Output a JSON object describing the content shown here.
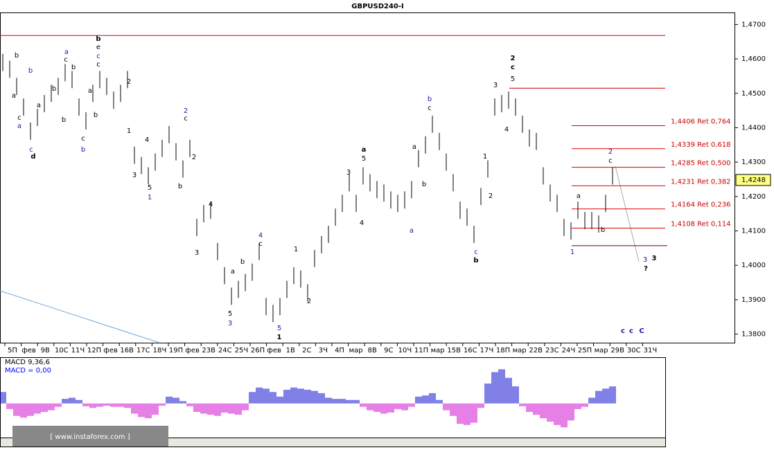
{
  "chart_data": {
    "type": "ohlc",
    "title": "GBPUSD240-I",
    "ylim": [
      1.3775,
      1.4735
    ],
    "yticks": [
      {
        "value": 1.47,
        "label": "1,4700"
      },
      {
        "value": 1.46,
        "label": "1,4600"
      },
      {
        "value": 1.45,
        "label": "1,4500"
      },
      {
        "value": 1.44,
        "label": "1,4400"
      },
      {
        "value": 1.43,
        "label": "1,4300"
      },
      {
        "value": 1.42,
        "label": "1,4200"
      },
      {
        "value": 1.41,
        "label": "1,4100"
      },
      {
        "value": 1.4,
        "label": "1,4000"
      },
      {
        "value": 1.39,
        "label": "1,3900"
      },
      {
        "value": 1.38,
        "label": "1,3800"
      }
    ],
    "current_price": {
      "value": 1.4248,
      "label": "1,4248"
    },
    "categories": [
      "5П",
      "фев",
      "9В",
      "10С",
      "11Ч",
      "12П",
      "фев",
      "16В",
      "17С",
      "18Ч",
      "19П",
      "фев",
      "23В",
      "24С",
      "25Ч",
      "26П",
      "фев",
      "1В",
      "2С",
      "3Ч",
      "4П",
      "мар",
      "8В",
      "9С",
      "10Ч",
      "11П",
      "мар",
      "15В",
      "16С",
      "17Ч",
      "18П",
      "мар",
      "22В",
      "23С",
      "24Ч",
      "25П",
      "мар",
      "29В",
      "30С",
      "31Ч"
    ],
    "high": [
      1.4615,
      1.4595,
      1.4545,
      1.4485,
      1.4415,
      1.4455,
      1.4495,
      1.4525,
      1.4545,
      1.4585,
      1.4565,
      1.4485,
      1.4445,
      1.4525,
      1.4565,
      1.4545,
      1.4505,
      1.4525,
      1.4565,
      1.4345,
      1.4315,
      1.4285,
      1.4325,
      1.4365,
      1.4405,
      1.4355,
      1.4305,
      1.4365,
      1.4135,
      1.4175,
      1.4185,
      1.4065,
      1.3995,
      1.3935,
      1.3955,
      1.3975,
      1.4005,
      1.4065,
      1.3905,
      1.3885,
      1.3905,
      1.3955,
      1.3995,
      1.3985,
      1.3945,
      1.4045,
      1.4085,
      1.4115,
      1.4165,
      1.4205,
      1.4265,
      1.4205,
      1.4285,
      1.4265,
      1.4245,
      1.4235,
      1.4215,
      1.4205,
      1.4215,
      1.4245,
      1.4335,
      1.4375,
      1.4435,
      1.4385,
      1.4325,
      1.4265,
      1.4185,
      1.4165,
      1.4115,
      1.4225,
      1.4305,
      1.4485,
      1.4495,
      1.4505,
      1.4485,
      1.4435,
      1.4395,
      1.4385,
      1.4285,
      1.4235,
      1.4205,
      1.4135,
      1.4125,
      1.4185,
      1.4155,
      1.4155,
      1.4145,
      1.4205,
      1.4285
    ],
    "low": [
      1.4565,
      1.4545,
      1.4495,
      1.4435,
      1.4365,
      1.4405,
      1.4445,
      1.4475,
      1.4495,
      1.4535,
      1.4515,
      1.4435,
      1.4395,
      1.4475,
      1.4515,
      1.4495,
      1.4455,
      1.4475,
      1.4515,
      1.4295,
      1.4265,
      1.4235,
      1.4275,
      1.4315,
      1.4355,
      1.4305,
      1.4255,
      1.4315,
      1.4085,
      1.4125,
      1.4135,
      1.4015,
      1.3945,
      1.3885,
      1.3905,
      1.3925,
      1.3955,
      1.4015,
      1.3855,
      1.3835,
      1.3855,
      1.3905,
      1.3945,
      1.3935,
      1.3895,
      1.3995,
      1.4035,
      1.4065,
      1.4115,
      1.4155,
      1.4215,
      1.4155,
      1.4235,
      1.4215,
      1.4195,
      1.4185,
      1.4165,
      1.4155,
      1.4165,
      1.4195,
      1.4285,
      1.4325,
      1.4385,
      1.4335,
      1.4275,
      1.4215,
      1.4135,
      1.4115,
      1.4065,
      1.4175,
      1.4255,
      1.4435,
      1.4445,
      1.4455,
      1.4435,
      1.4385,
      1.4345,
      1.4335,
      1.4235,
      1.4185,
      1.4155,
      1.4085,
      1.4075,
      1.4135,
      1.4105,
      1.4105,
      1.4095,
      1.4155,
      1.4235
    ],
    "levels": [
      {
        "value": 1.4406,
        "label": "1,4406 Ret 0,764"
      },
      {
        "value": 1.4339,
        "label": "1,4339 Ret 0,618"
      },
      {
        "value": 1.4285,
        "label": "1,4285 Ret 0,500"
      },
      {
        "value": 1.4231,
        "label": "1,4231 Ret 0,382"
      },
      {
        "value": 1.4164,
        "label": "1,4164 Ret 0,236"
      },
      {
        "value": 1.4108,
        "label": "1,4108 Ret 0,114"
      }
    ],
    "resistance": [
      1.4668,
      1.4515
    ],
    "support": 1.4057,
    "annotations": [
      "b",
      "a",
      "c",
      "a",
      "c",
      "d",
      "b",
      "a",
      "b",
      "a",
      "c",
      "b",
      "b",
      "c",
      "b",
      "b",
      "e",
      "c",
      "c",
      "a",
      "b",
      "2",
      "1",
      "3",
      "4",
      "5",
      "1",
      "b",
      "2",
      "c",
      "2",
      "4",
      "3",
      "a",
      "b",
      "5",
      "3",
      "4",
      "c",
      "5",
      "1",
      "1",
      "2",
      "3",
      "a",
      "5",
      "4",
      "a",
      "a",
      "b",
      "b",
      "c",
      "c",
      "b",
      "1",
      "2",
      "3",
      "4",
      "2",
      "c",
      "5",
      "a",
      "b",
      "1",
      "2",
      "c",
      "3",
      "3",
      "?",
      "c",
      "c",
      "C"
    ],
    "macd_title": "MACD 9,36,6",
    "macd_value": "MACD = 0,00",
    "macd_ylim": [
      -60,
      80
    ],
    "macd": [
      20,
      -10,
      -22,
      -25,
      -22,
      -18,
      -15,
      -12,
      -6,
      8,
      10,
      6,
      -5,
      -8,
      -6,
      -4,
      -6,
      -6,
      -8,
      -18,
      -24,
      -26,
      -20,
      -4,
      12,
      10,
      4,
      -5,
      -15,
      -18,
      -20,
      -22,
      -16,
      -18,
      -20,
      -12,
      20,
      28,
      26,
      20,
      12,
      24,
      28,
      26,
      24,
      22,
      18,
      10,
      8,
      8,
      6,
      6,
      -6,
      -12,
      -15,
      -18,
      -16,
      -10,
      -12,
      -6,
      12,
      14,
      18,
      6,
      -12,
      -22,
      -36,
      -38,
      -34,
      -8,
      35,
      55,
      60,
      45,
      30,
      -5,
      -15,
      -20,
      -26,
      -32,
      -38,
      -42,
      -30,
      -10,
      -6,
      10,
      22,
      26,
      30
    ],
    "watermark": "[ www.instaforex.com ]"
  }
}
